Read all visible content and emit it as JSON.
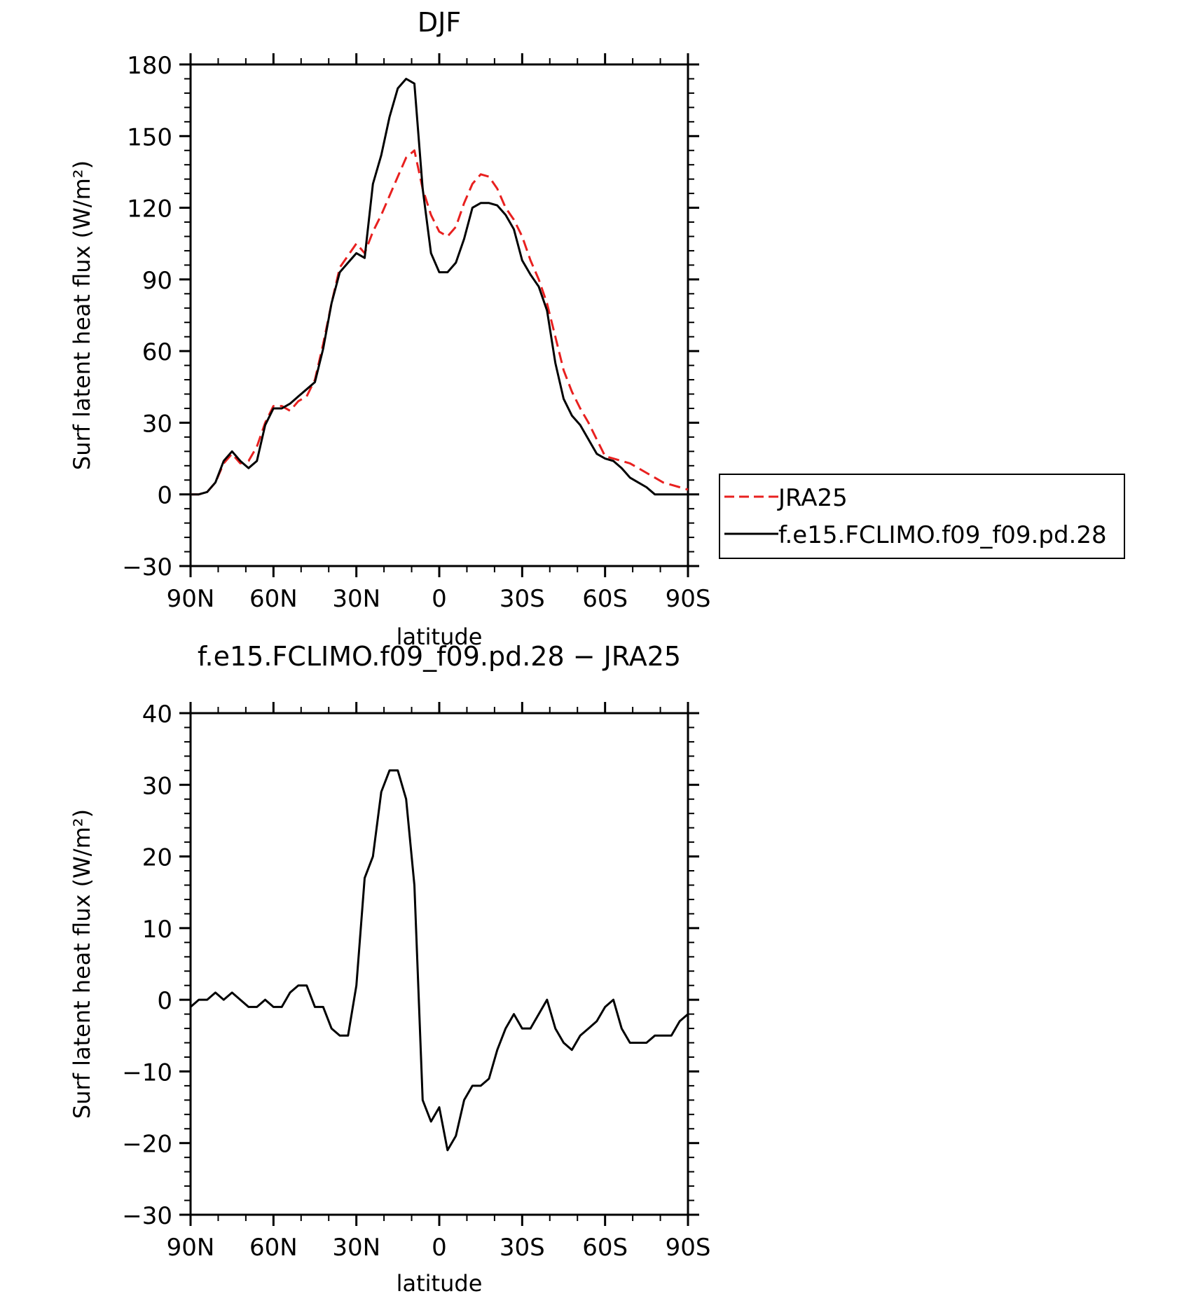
{
  "chart_data": [
    {
      "type": "line",
      "title": "DJF",
      "xlabel": "latitude",
      "ylabel": "Surf latent heat flux (W/m²)",
      "x_range": [
        -90,
        90
      ],
      "x_ticks": [
        -90,
        -60,
        -30,
        0,
        30,
        60,
        90
      ],
      "x_tick_labels": [
        "90N",
        "60N",
        "30N",
        "0",
        "30S",
        "60S",
        "90S"
      ],
      "ylim": [
        -30,
        180
      ],
      "y_ticks": [
        -30,
        0,
        30,
        60,
        90,
        120,
        150,
        180
      ],
      "y_tick_labels": [
        "−30",
        "0",
        "30",
        "60",
        "90",
        "120",
        "150",
        "180"
      ],
      "grid": false,
      "legend": {
        "placement": "right",
        "entries": [
          "JRA25",
          "f.e15.FCLIMO.f09_f09.pd.28"
        ]
      },
      "x": [
        -90,
        -87,
        -84,
        -81,
        -78,
        -75,
        -72,
        -69,
        -66,
        -63,
        -60,
        -57,
        -54,
        -51,
        -48,
        -45,
        -42,
        -39,
        -36,
        -33,
        -30,
        -27,
        -24,
        -21,
        -18,
        -15,
        -12,
        -9,
        -6,
        -3,
        0,
        3,
        6,
        9,
        12,
        15,
        18,
        21,
        24,
        27,
        30,
        33,
        36,
        39,
        42,
        45,
        48,
        51,
        54,
        57,
        60,
        63,
        66,
        69,
        72,
        75,
        78,
        81,
        84,
        87,
        90
      ],
      "series": [
        {
          "name": "JRA25",
          "color": "#e8201f",
          "style": "dashed",
          "values": [
            0,
            0,
            1,
            5,
            13,
            17,
            13,
            14,
            20,
            30,
            37,
            37,
            35,
            39,
            41,
            48,
            63,
            80,
            95,
            100,
            105,
            101,
            110,
            117,
            125,
            133,
            141,
            144,
            128,
            117,
            110,
            108,
            112,
            122,
            130,
            134,
            133,
            128,
            120,
            115,
            108,
            98,
            90,
            80,
            66,
            52,
            43,
            36,
            30,
            23,
            16,
            15,
            14,
            13,
            11,
            9,
            7,
            5,
            4,
            3,
            2
          ]
        },
        {
          "name": "f.e15.FCLIMO.f09_f09.pd.28",
          "color": "#000000",
          "style": "solid",
          "values": [
            0,
            0,
            1,
            5,
            14,
            18,
            14,
            11,
            14,
            29,
            36,
            36,
            38,
            41,
            44,
            47,
            61,
            80,
            93,
            97,
            101,
            99,
            130,
            142,
            158,
            170,
            174,
            172,
            128,
            101,
            93,
            93,
            97,
            107,
            120,
            122,
            122,
            121,
            117,
            111,
            98,
            92,
            87,
            77,
            55,
            40,
            33,
            29,
            23,
            17,
            15,
            14,
            11,
            7,
            5,
            3,
            0,
            0,
            0,
            0,
            0
          ]
        }
      ]
    },
    {
      "type": "line",
      "title": "f.e15.FCLIMO.f09_f09.pd.28 − JRA25",
      "xlabel": "latitude",
      "ylabel": "Surf latent heat flux (W/m²)",
      "x_range": [
        -90,
        90
      ],
      "x_ticks": [
        -90,
        -60,
        -30,
        0,
        30,
        60,
        90
      ],
      "x_tick_labels": [
        "90N",
        "60N",
        "30N",
        "0",
        "30S",
        "60S",
        "90S"
      ],
      "ylim": [
        -30,
        40
      ],
      "y_ticks": [
        -30,
        -20,
        -10,
        0,
        10,
        20,
        30,
        40
      ],
      "y_tick_labels": [
        "−30",
        "−20",
        "−10",
        "0",
        "10",
        "20",
        "30",
        "40"
      ],
      "grid": false,
      "x": [
        -90,
        -87,
        -84,
        -81,
        -78,
        -75,
        -72,
        -69,
        -66,
        -63,
        -60,
        -57,
        -54,
        -51,
        -48,
        -45,
        -42,
        -39,
        -36,
        -33,
        -30,
        -27,
        -24,
        -21,
        -18,
        -15,
        -12,
        -9,
        -6,
        -3,
        0,
        3,
        6,
        9,
        12,
        15,
        18,
        21,
        24,
        27,
        30,
        33,
        36,
        39,
        42,
        45,
        48,
        51,
        54,
        57,
        60,
        63,
        66,
        69,
        72,
        75,
        78,
        81,
        84,
        87,
        90
      ],
      "series": [
        {
          "color": "#000000",
          "style": "solid",
          "values": [
            -1,
            0,
            0,
            1,
            0,
            1,
            0,
            -1,
            -1,
            0,
            -1,
            -1,
            1,
            2,
            2,
            -1,
            -1,
            -4,
            -5,
            -5,
            2,
            17,
            20,
            29,
            32,
            32,
            28,
            16,
            -14,
            -17,
            -15,
            -21,
            -19,
            -14,
            -12,
            -12,
            -11,
            -7,
            -4,
            -2,
            -4,
            -4,
            -2,
            0,
            -4,
            -6,
            -7,
            -5,
            -4,
            -3,
            -1,
            0,
            -4,
            -6,
            -6,
            -6,
            -5,
            -5,
            -5,
            -3,
            -2
          ]
        }
      ]
    }
  ]
}
